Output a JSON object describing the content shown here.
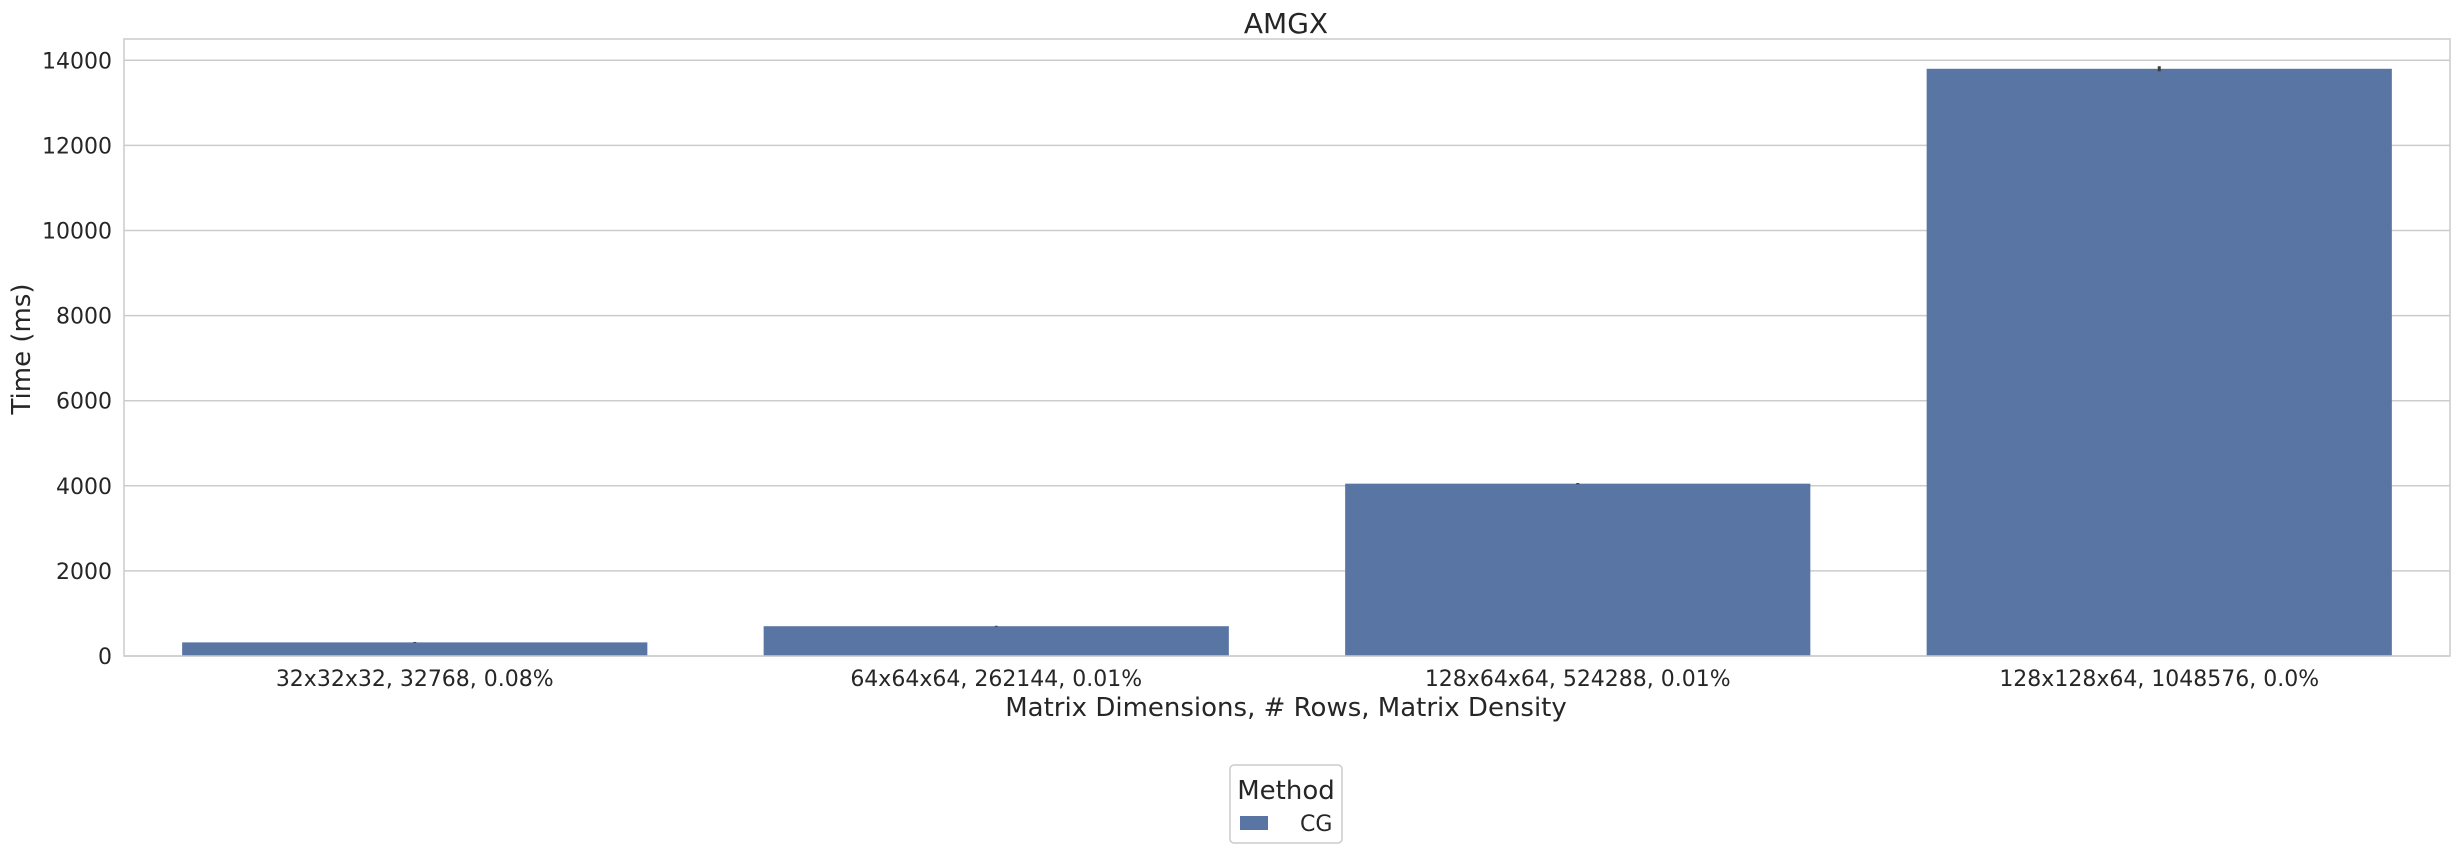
{
  "chart_data": {
    "type": "bar",
    "title": "AMGX",
    "xlabel": "Matrix Dimensions, # Rows, Matrix Density",
    "ylabel": "Time (ms)",
    "categories": [
      "32x32x32, 32768, 0.08%",
      "64x64x64, 262144, 0.01%",
      "128x64x64, 524288, 0.01%",
      "128x128x64, 1048576, 0.0%"
    ],
    "series": [
      {
        "name": "CG",
        "values": [
          320,
          700,
          4050,
          13800
        ],
        "error": [
          10,
          10,
          15,
          60
        ],
        "color": "#5975a4"
      }
    ],
    "ylim": [
      0,
      14500
    ],
    "yticks": [
      0,
      2000,
      4000,
      6000,
      8000,
      10000,
      12000,
      14000
    ],
    "grid": true,
    "legend": {
      "title": "Method",
      "placement": "bottom-center"
    }
  }
}
